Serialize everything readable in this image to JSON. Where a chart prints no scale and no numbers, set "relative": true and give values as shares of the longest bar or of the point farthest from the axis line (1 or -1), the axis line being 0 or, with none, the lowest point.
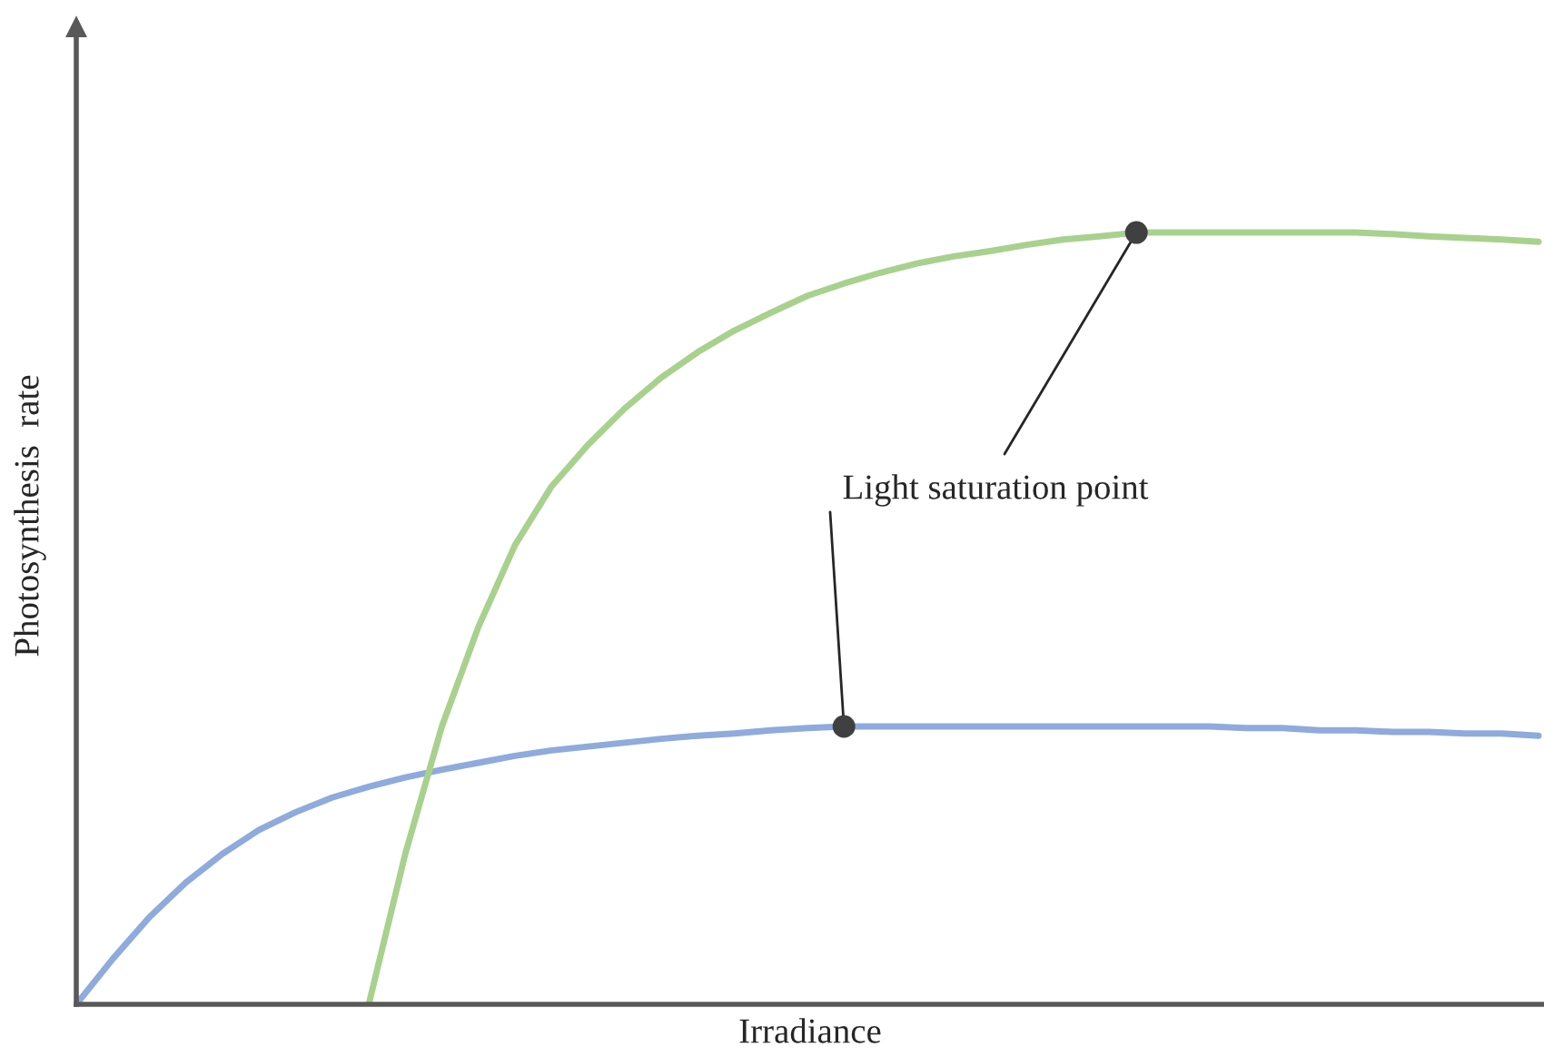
{
  "chart_data": {
    "type": "line",
    "relative": true,
    "xlabel": "Irradiance",
    "ylabel": "Photosynthesis  rate",
    "categories": [
      null,
      null,
      null,
      null,
      null,
      null,
      null,
      null,
      null,
      null,
      null,
      null,
      null,
      null,
      null,
      null,
      null,
      null,
      null,
      null,
      null,
      null,
      null,
      null,
      null,
      null,
      null,
      null,
      null,
      null,
      null,
      null,
      null,
      null,
      null,
      null,
      null,
      null,
      null,
      null,
      null
    ],
    "series": [
      {
        "color": "#8faadc",
        "values": [
          0,
          0.059,
          0.113,
          0.158,
          0.195,
          0.226,
          0.249,
          0.268,
          0.282,
          0.294,
          0.304,
          0.313,
          0.322,
          0.329,
          0.334,
          0.339,
          0.344,
          0.348,
          0.351,
          0.355,
          0.358,
          0.36,
          0.36,
          0.36,
          0.36,
          0.36,
          0.36,
          0.36,
          0.36,
          0.36,
          0.36,
          0.36,
          0.358,
          0.358,
          0.355,
          0.355,
          0.353,
          0.353,
          0.351,
          0.351,
          0.348
        ]
      },
      {
        "color": "#a9d18e",
        "values": [
          null,
          null,
          null,
          null,
          null,
          null,
          null,
          null,
          0,
          0.195,
          0.36,
          0.489,
          0.595,
          0.671,
          0.725,
          0.772,
          0.812,
          0.845,
          0.873,
          0.896,
          0.918,
          0.934,
          0.948,
          0.96,
          0.969,
          0.976,
          0.984,
          0.991,
          0.995,
          1,
          1,
          1,
          1,
          1,
          1,
          1,
          0.998,
          0.995,
          0.993,
          0.991,
          0.988
        ]
      }
    ],
    "annotations": [
      "Light saturation point"
    ]
  }
}
